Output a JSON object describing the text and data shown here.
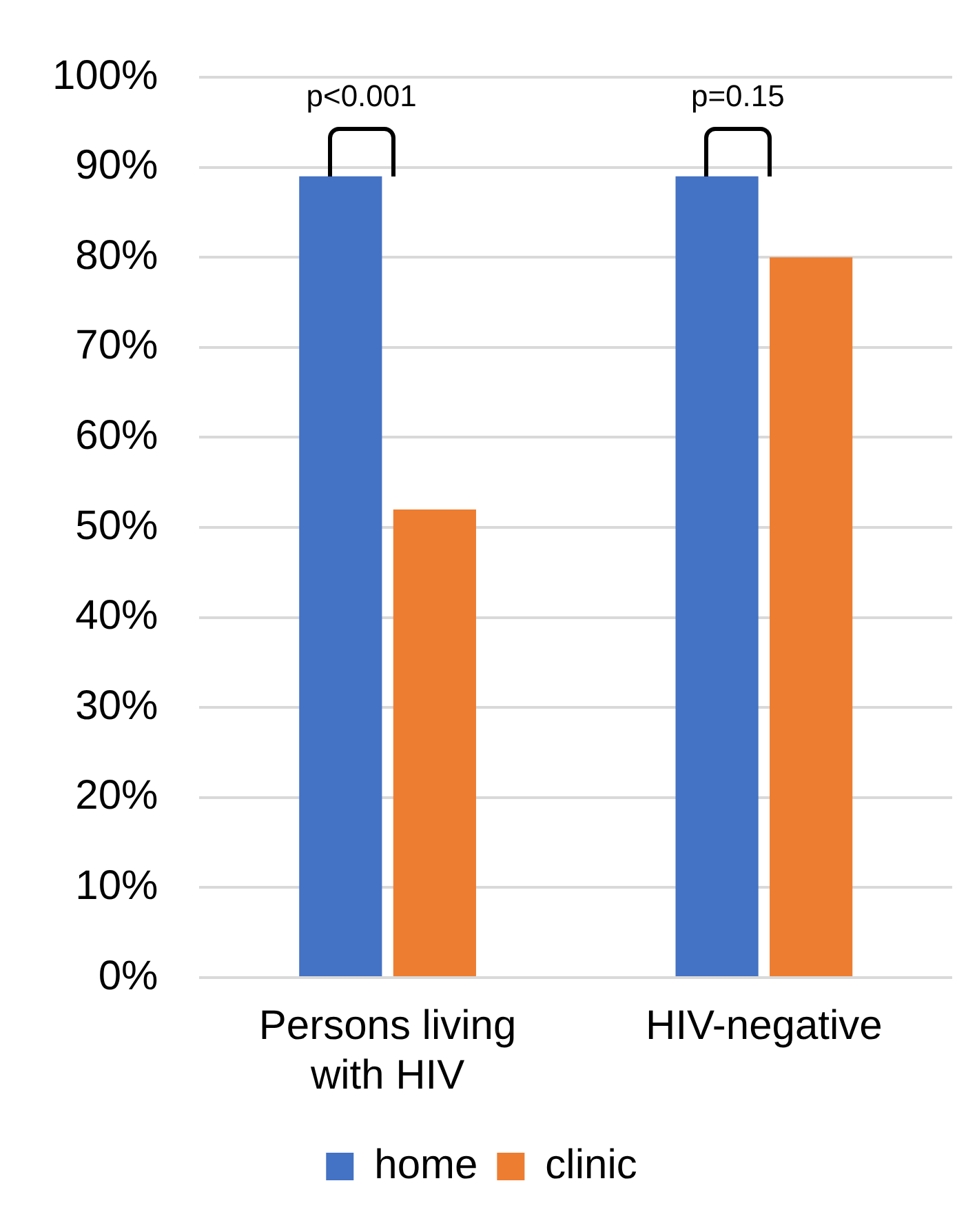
{
  "chart_data": {
    "type": "bar",
    "categories": [
      "Persons living with HIV",
      "HIV-negative"
    ],
    "series": [
      {
        "name": "home",
        "color": "#4472c4",
        "values": [
          89,
          89
        ]
      },
      {
        "name": "clinic",
        "color": "#ed7d31",
        "values": [
          52,
          80
        ]
      }
    ],
    "ylim": [
      0,
      100
    ],
    "yticks": [
      {
        "value": 0,
        "label": "0%"
      },
      {
        "value": 10,
        "label": "10%"
      },
      {
        "value": 20,
        "label": "20%"
      },
      {
        "value": 30,
        "label": "30%"
      },
      {
        "value": 40,
        "label": "40%"
      },
      {
        "value": 50,
        "label": "50%"
      },
      {
        "value": 60,
        "label": "60%"
      },
      {
        "value": 70,
        "label": "70%"
      },
      {
        "value": 80,
        "label": "80%"
      },
      {
        "value": 90,
        "label": "90%"
      },
      {
        "value": 100,
        "label": "100%"
      }
    ],
    "grid": "y",
    "legend": "bottom",
    "annotations": [
      {
        "text": "p<0.001",
        "x": "Persons living with HIV",
        "y": 89
      },
      {
        "text": "p=0.15",
        "x": "HIV-negative",
        "y": 89
      }
    ]
  }
}
